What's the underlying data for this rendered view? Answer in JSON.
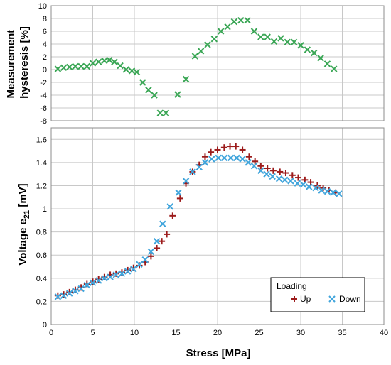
{
  "chart_data": [
    {
      "id": "hysteresis",
      "type": "scatter",
      "ylabel_lines": [
        "Measurement",
        "hysteresis [%]"
      ],
      "xlim": [
        0,
        40
      ],
      "ylim": [
        -8,
        10
      ],
      "yticks": [
        -8,
        -6,
        -4,
        -2,
        0,
        2,
        4,
        6,
        8,
        10
      ],
      "grid": true,
      "series": [
        {
          "color": "#3aa655",
          "marker": "x",
          "points": [
            [
              0.8,
              0.1
            ],
            [
              1.5,
              0.3
            ],
            [
              2.2,
              0.4
            ],
            [
              2.9,
              0.5
            ],
            [
              3.6,
              0.5
            ],
            [
              4.3,
              0.5
            ],
            [
              5.0,
              1.0
            ],
            [
              5.7,
              1.2
            ],
            [
              6.4,
              1.4
            ],
            [
              7.0,
              1.5
            ],
            [
              7.6,
              1.2
            ],
            [
              8.3,
              0.6
            ],
            [
              9.0,
              0.0
            ],
            [
              9.7,
              -0.2
            ],
            [
              10.3,
              -0.4
            ],
            [
              11.0,
              -2.0
            ],
            [
              11.7,
              -3.2
            ],
            [
              12.4,
              -4.0
            ],
            [
              13.1,
              -6.8
            ],
            [
              13.8,
              -6.8
            ],
            [
              15.2,
              -3.9
            ],
            [
              16.2,
              -1.5
            ],
            [
              17.3,
              2.1
            ],
            [
              18.0,
              2.9
            ],
            [
              18.8,
              3.9
            ],
            [
              19.6,
              4.8
            ],
            [
              20.4,
              6.0
            ],
            [
              21.2,
              6.7
            ],
            [
              22.0,
              7.5
            ],
            [
              22.8,
              7.7
            ],
            [
              23.6,
              7.7
            ],
            [
              24.4,
              6.0
            ],
            [
              25.2,
              5.1
            ],
            [
              26.0,
              5.1
            ],
            [
              26.8,
              4.4
            ],
            [
              27.6,
              4.9
            ],
            [
              28.4,
              4.3
            ],
            [
              29.2,
              4.3
            ],
            [
              30.0,
              3.8
            ],
            [
              30.8,
              3.1
            ],
            [
              31.6,
              2.6
            ],
            [
              32.4,
              1.8
            ],
            [
              33.2,
              0.9
            ],
            [
              34.0,
              0.1
            ]
          ]
        }
      ]
    },
    {
      "id": "voltage",
      "type": "scatter",
      "xlabel": "Stress [MPa]",
      "ylabel": "Voltage e",
      "ylabel_sub": "21",
      "ylabel_unit": " [mV]",
      "xlim": [
        0,
        40
      ],
      "ylim": [
        0,
        1.7
      ],
      "xticks": [
        0,
        5,
        10,
        15,
        20,
        25,
        30,
        35,
        40
      ],
      "yticks": [
        0,
        0.2,
        0.4,
        0.6,
        0.8,
        1,
        1.2,
        1.4,
        1.6
      ],
      "grid": true,
      "legend": {
        "title": "Loading",
        "placement": "bottom-right",
        "entries": [
          "Up",
          "Down"
        ]
      },
      "series": [
        {
          "name": "Up",
          "color": "#9c1b1b",
          "marker": "+",
          "points": [
            [
              0.8,
              0.25
            ],
            [
              1.5,
              0.26
            ],
            [
              2.2,
              0.28
            ],
            [
              2.9,
              0.3
            ],
            [
              3.6,
              0.32
            ],
            [
              4.3,
              0.35
            ],
            [
              5.0,
              0.37
            ],
            [
              5.7,
              0.39
            ],
            [
              6.4,
              0.41
            ],
            [
              7.1,
              0.43
            ],
            [
              7.8,
              0.44
            ],
            [
              8.5,
              0.45
            ],
            [
              9.2,
              0.47
            ],
            [
              9.9,
              0.49
            ],
            [
              10.6,
              0.51
            ],
            [
              11.3,
              0.54
            ],
            [
              12.0,
              0.59
            ],
            [
              12.7,
              0.66
            ],
            [
              13.3,
              0.72
            ],
            [
              13.9,
              0.78
            ],
            [
              14.6,
              0.94
            ],
            [
              15.5,
              1.09
            ],
            [
              16.2,
              1.22
            ],
            [
              17.0,
              1.32
            ],
            [
              17.8,
              1.38
            ],
            [
              18.5,
              1.45
            ],
            [
              19.2,
              1.49
            ],
            [
              20.0,
              1.51
            ],
            [
              20.8,
              1.53
            ],
            [
              21.5,
              1.54
            ],
            [
              22.2,
              1.54
            ],
            [
              23.0,
              1.51
            ],
            [
              23.8,
              1.45
            ],
            [
              24.5,
              1.41
            ],
            [
              25.2,
              1.37
            ],
            [
              26.0,
              1.35
            ],
            [
              26.7,
              1.33
            ],
            [
              27.5,
              1.32
            ],
            [
              28.2,
              1.31
            ],
            [
              29.0,
              1.29
            ],
            [
              29.7,
              1.27
            ],
            [
              30.5,
              1.25
            ],
            [
              31.2,
              1.23
            ],
            [
              32.0,
              1.2
            ],
            [
              32.7,
              1.18
            ],
            [
              33.4,
              1.16
            ],
            [
              34.2,
              1.14
            ]
          ]
        },
        {
          "name": "Down",
          "color": "#41a5dc",
          "marker": "x",
          "points": [
            [
              0.8,
              0.24
            ],
            [
              1.5,
              0.25
            ],
            [
              2.2,
              0.27
            ],
            [
              2.9,
              0.29
            ],
            [
              3.6,
              0.31
            ],
            [
              4.3,
              0.34
            ],
            [
              5.0,
              0.36
            ],
            [
              5.7,
              0.38
            ],
            [
              6.4,
              0.4
            ],
            [
              7.1,
              0.41
            ],
            [
              7.8,
              0.43
            ],
            [
              8.5,
              0.44
            ],
            [
              9.2,
              0.46
            ],
            [
              9.9,
              0.48
            ],
            [
              10.6,
              0.52
            ],
            [
              11.3,
              0.56
            ],
            [
              12.0,
              0.63
            ],
            [
              12.7,
              0.72
            ],
            [
              13.4,
              0.87
            ],
            [
              14.3,
              1.02
            ],
            [
              15.3,
              1.14
            ],
            [
              16.2,
              1.24
            ],
            [
              17.0,
              1.32
            ],
            [
              17.8,
              1.36
            ],
            [
              18.5,
              1.4
            ],
            [
              19.3,
              1.43
            ],
            [
              20.1,
              1.44
            ],
            [
              20.8,
              1.44
            ],
            [
              21.6,
              1.44
            ],
            [
              22.3,
              1.44
            ],
            [
              23.0,
              1.43
            ],
            [
              23.7,
              1.4
            ],
            [
              24.4,
              1.37
            ],
            [
              25.2,
              1.33
            ],
            [
              25.9,
              1.3
            ],
            [
              26.6,
              1.28
            ],
            [
              27.4,
              1.26
            ],
            [
              28.1,
              1.25
            ],
            [
              28.8,
              1.24
            ],
            [
              29.6,
              1.22
            ],
            [
              30.3,
              1.21
            ],
            [
              31.0,
              1.19
            ],
            [
              31.8,
              1.18
            ],
            [
              32.5,
              1.16
            ],
            [
              33.2,
              1.15
            ],
            [
              33.9,
              1.14
            ],
            [
              34.6,
              1.13
            ]
          ]
        }
      ]
    }
  ]
}
